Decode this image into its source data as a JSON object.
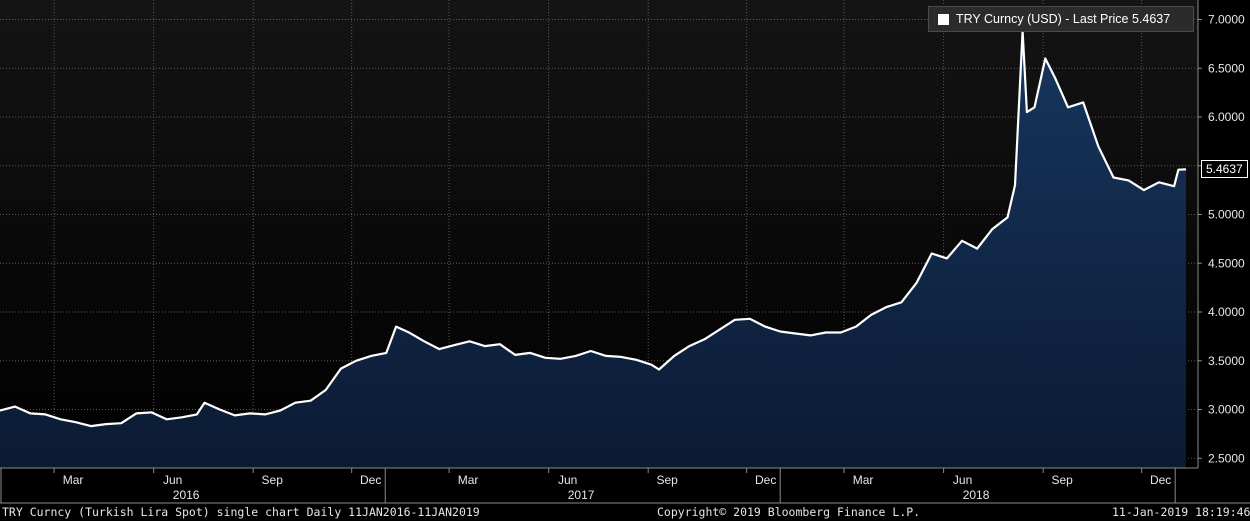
{
  "chart_data": {
    "type": "area",
    "ylim": [
      2.4,
      7.2
    ],
    "yticks": [
      "2.5000",
      "3.0000",
      "3.5000",
      "4.0000",
      "4.5000",
      "5.0000",
      "5.5000",
      "6.0000",
      "6.5000",
      "7.0000"
    ],
    "month_ticks": [
      "Mar",
      "Jun",
      "Sep",
      "Dec",
      "Mar",
      "Jun",
      "Sep",
      "Dec",
      "Mar",
      "Jun",
      "Sep",
      "Dec"
    ],
    "year_labels": [
      "2016",
      "2017",
      "2018"
    ],
    "legend": "TRY Curncy (USD)  - Last Price 5.4637",
    "last_value_label": "5.4637",
    "x_start": "2016-01-11",
    "x_end": "2019-01-11",
    "series": [
      {
        "line_color": "#ffffff",
        "fill_top": "#17365e",
        "fill_bottom": "#0b1a33",
        "points": [
          [
            "2016-01-11",
            2.99
          ],
          [
            "2016-01-25",
            3.03
          ],
          [
            "2016-02-08",
            2.96
          ],
          [
            "2016-02-22",
            2.95
          ],
          [
            "2016-03-07",
            2.9
          ],
          [
            "2016-03-21",
            2.87
          ],
          [
            "2016-04-04",
            2.83
          ],
          [
            "2016-04-18",
            2.85
          ],
          [
            "2016-05-02",
            2.86
          ],
          [
            "2016-05-16",
            2.96
          ],
          [
            "2016-05-30",
            2.97
          ],
          [
            "2016-06-13",
            2.9
          ],
          [
            "2016-06-27",
            2.92
          ],
          [
            "2016-07-11",
            2.95
          ],
          [
            "2016-07-18",
            3.07
          ],
          [
            "2016-08-01",
            3.0
          ],
          [
            "2016-08-15",
            2.94
          ],
          [
            "2016-08-29",
            2.96
          ],
          [
            "2016-09-12",
            2.95
          ],
          [
            "2016-09-26",
            2.99
          ],
          [
            "2016-10-10",
            3.07
          ],
          [
            "2016-10-24",
            3.09
          ],
          [
            "2016-11-07",
            3.2
          ],
          [
            "2016-11-21",
            3.42
          ],
          [
            "2016-12-05",
            3.5
          ],
          [
            "2016-12-19",
            3.55
          ],
          [
            "2017-01-02",
            3.58
          ],
          [
            "2017-01-11",
            3.85
          ],
          [
            "2017-01-23",
            3.79
          ],
          [
            "2017-02-06",
            3.7
          ],
          [
            "2017-02-20",
            3.62
          ],
          [
            "2017-03-06",
            3.66
          ],
          [
            "2017-03-20",
            3.7
          ],
          [
            "2017-04-03",
            3.65
          ],
          [
            "2017-04-17",
            3.67
          ],
          [
            "2017-05-01",
            3.56
          ],
          [
            "2017-05-15",
            3.58
          ],
          [
            "2017-05-29",
            3.53
          ],
          [
            "2017-06-12",
            3.52
          ],
          [
            "2017-06-26",
            3.55
          ],
          [
            "2017-07-10",
            3.6
          ],
          [
            "2017-07-24",
            3.55
          ],
          [
            "2017-08-07",
            3.54
          ],
          [
            "2017-08-21",
            3.51
          ],
          [
            "2017-09-04",
            3.46
          ],
          [
            "2017-09-11",
            3.41
          ],
          [
            "2017-09-25",
            3.55
          ],
          [
            "2017-10-09",
            3.65
          ],
          [
            "2017-10-23",
            3.72
          ],
          [
            "2017-11-06",
            3.82
          ],
          [
            "2017-11-20",
            3.92
          ],
          [
            "2017-12-04",
            3.93
          ],
          [
            "2017-12-18",
            3.85
          ],
          [
            "2018-01-01",
            3.8
          ],
          [
            "2018-01-15",
            3.78
          ],
          [
            "2018-01-29",
            3.76
          ],
          [
            "2018-02-12",
            3.79
          ],
          [
            "2018-02-26",
            3.79
          ],
          [
            "2018-03-12",
            3.85
          ],
          [
            "2018-03-26",
            3.97
          ],
          [
            "2018-04-09",
            4.05
          ],
          [
            "2018-04-23",
            4.1
          ],
          [
            "2018-05-07",
            4.3
          ],
          [
            "2018-05-21",
            4.6
          ],
          [
            "2018-06-04",
            4.55
          ],
          [
            "2018-06-18",
            4.73
          ],
          [
            "2018-07-02",
            4.65
          ],
          [
            "2018-07-16",
            4.85
          ],
          [
            "2018-07-30",
            4.97
          ],
          [
            "2018-08-06",
            5.3
          ],
          [
            "2018-08-13",
            6.88
          ],
          [
            "2018-08-17",
            6.05
          ],
          [
            "2018-08-24",
            6.1
          ],
          [
            "2018-09-03",
            6.6
          ],
          [
            "2018-09-12",
            6.4
          ],
          [
            "2018-09-24",
            6.1
          ],
          [
            "2018-10-08",
            6.15
          ],
          [
            "2018-10-22",
            5.7
          ],
          [
            "2018-11-05",
            5.38
          ],
          [
            "2018-11-19",
            5.35
          ],
          [
            "2018-12-03",
            5.25
          ],
          [
            "2018-12-17",
            5.33
          ],
          [
            "2018-12-31",
            5.29
          ],
          [
            "2019-01-04",
            5.46
          ],
          [
            "2019-01-11",
            5.4637
          ]
        ]
      }
    ],
    "grid": true
  },
  "footer": {
    "left": "TRY Curncy (Turkish Lira Spot) single chart  Daily 11JAN2016-11JAN2019",
    "center": "Copyright© 2019 Bloomberg Finance L.P.",
    "right": "11-Jan-2019 18:19:46"
  }
}
